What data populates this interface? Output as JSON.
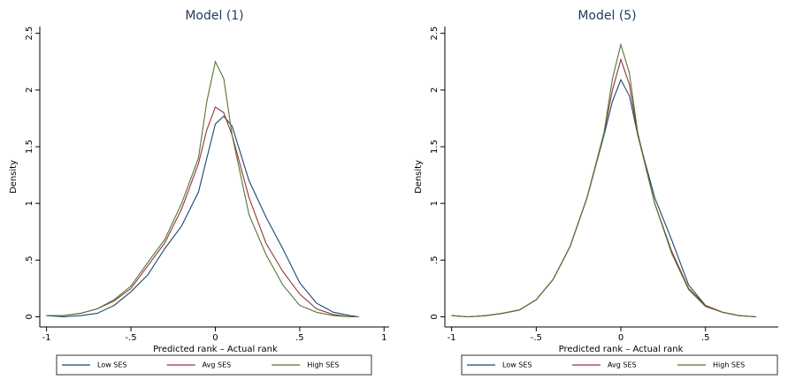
{
  "chart_data": [
    {
      "type": "line",
      "title": "Model (1)",
      "x_label": "Predicted rank – Actual rank",
      "y_label": "Density",
      "x": [
        -1,
        -0.9,
        -0.8,
        -0.7,
        -0.6,
        -0.5,
        -0.4,
        -0.3,
        -0.2,
        -0.1,
        -0.05,
        0,
        0.05,
        0.1,
        0.2,
        0.3,
        0.4,
        0.5,
        0.6,
        0.7,
        0.8,
        0.85
      ],
      "series": [
        {
          "name": "Low SES",
          "color": "#1a476f",
          "values": [
            0.01,
            0.0,
            0.01,
            0.03,
            0.1,
            0.22,
            0.37,
            0.6,
            0.8,
            1.1,
            1.4,
            1.7,
            1.77,
            1.68,
            1.2,
            0.88,
            0.6,
            0.3,
            0.12,
            0.04,
            0.01,
            0.0
          ]
        },
        {
          "name": "Avg SES",
          "color": "#90353b",
          "values": [
            0.01,
            0.01,
            0.03,
            0.07,
            0.14,
            0.25,
            0.45,
            0.65,
            0.95,
            1.35,
            1.65,
            1.85,
            1.8,
            1.6,
            1.05,
            0.65,
            0.4,
            0.2,
            0.07,
            0.02,
            0.0,
            0.0
          ]
        },
        {
          "name": "High SES",
          "color": "#55752f",
          "values": [
            0.01,
            0.01,
            0.03,
            0.07,
            0.15,
            0.27,
            0.48,
            0.68,
            1.0,
            1.4,
            1.9,
            2.25,
            2.1,
            1.6,
            0.9,
            0.55,
            0.28,
            0.1,
            0.04,
            0.01,
            0.0,
            0.0
          ]
        }
      ],
      "xlim": [
        -1.04,
        1.03
      ],
      "xticks": [
        -1,
        {
          "value": -0.5,
          "label": "-.5"
        },
        0,
        {
          "value": 0.5,
          "label": ".5"
        },
        1
      ],
      "ylim": [
        -0.09,
        2.56
      ],
      "yticks": [
        0,
        {
          "value": 0.5,
          "label": ".5"
        },
        1,
        1.5,
        2,
        2.5
      ]
    },
    {
      "type": "line",
      "title": "Model (5)",
      "x_label": "Predicted rank – Actual rank",
      "y_label": "Density",
      "x": [
        -1,
        -0.9,
        -0.8,
        -0.7,
        -0.6,
        -0.5,
        -0.4,
        -0.3,
        -0.2,
        -0.1,
        -0.05,
        0,
        0.05,
        0.1,
        0.2,
        0.3,
        0.4,
        0.5,
        0.6,
        0.7,
        0.8
      ],
      "series": [
        {
          "name": "Low SES",
          "color": "#1a476f",
          "values": [
            0.01,
            0.0,
            0.01,
            0.03,
            0.06,
            0.15,
            0.33,
            0.62,
            1.05,
            1.6,
            1.9,
            2.09,
            1.95,
            1.6,
            1.05,
            0.68,
            0.28,
            0.1,
            0.04,
            0.01,
            0.0
          ]
        },
        {
          "name": "Avg SES",
          "color": "#90353b",
          "values": [
            0.01,
            0.0,
            0.01,
            0.03,
            0.06,
            0.15,
            0.33,
            0.62,
            1.05,
            1.62,
            2.0,
            2.27,
            2.05,
            1.6,
            1.0,
            0.58,
            0.25,
            0.1,
            0.04,
            0.01,
            0.0
          ]
        },
        {
          "name": "High SES",
          "color": "#55752f",
          "values": [
            0.01,
            0.0,
            0.01,
            0.03,
            0.06,
            0.15,
            0.33,
            0.62,
            1.05,
            1.62,
            2.1,
            2.4,
            2.15,
            1.62,
            1.0,
            0.56,
            0.24,
            0.09,
            0.04,
            0.01,
            0.0
          ]
        }
      ],
      "xlim": [
        -1.04,
        0.93
      ],
      "xticks": [
        -1,
        {
          "value": -0.5,
          "label": "-.5"
        },
        0,
        {
          "value": 0.5,
          "label": ".5"
        }
      ],
      "ylim": [
        -0.09,
        2.56
      ],
      "yticks": [
        0,
        {
          "value": 0.5,
          "label": ".5"
        },
        1,
        1.5,
        2,
        2.5
      ]
    }
  ]
}
